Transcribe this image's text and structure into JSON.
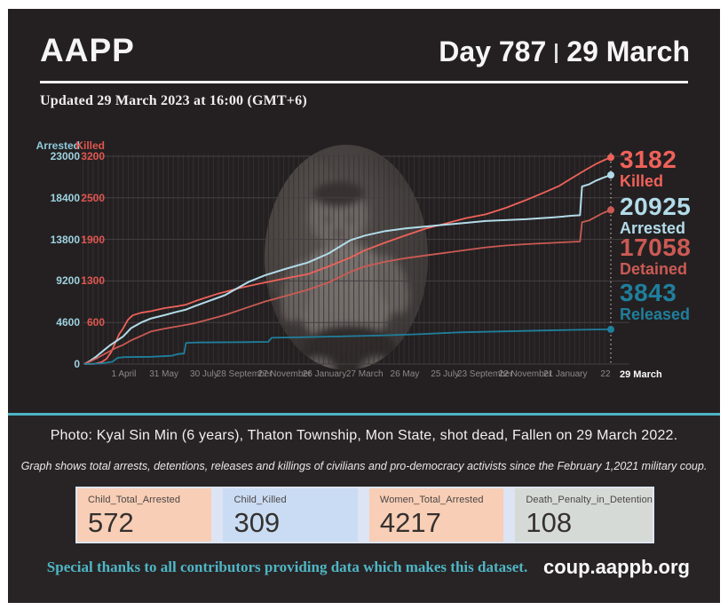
{
  "header": {
    "brand": "AAPP",
    "day_label": "Day 787",
    "date_label": "29 March",
    "updated": "Updated 29 March 2023 at 16:00 (GMT+6)"
  },
  "chart_data": {
    "type": "line",
    "x_domain": [
      0,
      787
    ],
    "x_domain_note": "days since 1 February 2021 coup; last day = 29 March 2023",
    "grid": true,
    "left_axis": {
      "title": "Arrested",
      "max": 23000,
      "ticks": [
        0,
        4600,
        9200,
        13800,
        18400,
        23000
      ],
      "color": "#9ed2e0"
    },
    "right_axis": {
      "title": "Killed",
      "max": 3200,
      "ticks": [
        600,
        1300,
        1900,
        2500,
        3200
      ],
      "color": "#e0564f"
    },
    "x_ticks": [
      {
        "label": "1 April",
        "day": 59
      },
      {
        "label": "31 May",
        "day": 119
      },
      {
        "label": "30 July",
        "day": 179
      },
      {
        "label": "28 September",
        "day": 239
      },
      {
        "label": "27 November",
        "day": 299
      },
      {
        "label": "26 January",
        "day": 359
      },
      {
        "label": "27 March",
        "day": 419
      },
      {
        "label": "26 May",
        "day": 479
      },
      {
        "label": "25 July",
        "day": 539
      },
      {
        "label": "23 September",
        "day": 599
      },
      {
        "label": "22 November",
        "day": 659
      },
      {
        "label": "21 January",
        "day": 719
      },
      {
        "label": "22",
        "day": 779
      },
      {
        "label": "29 March",
        "day": 787,
        "bold": true
      }
    ],
    "series": [
      {
        "name": "Killed",
        "axis": "right",
        "color": "#ef625a",
        "end_label": "3182",
        "end_value": 3182,
        "points": [
          [
            0,
            0
          ],
          [
            15,
            3
          ],
          [
            26,
            30
          ],
          [
            33,
            80
          ],
          [
            40,
            180
          ],
          [
            46,
            320
          ],
          [
            52,
            460
          ],
          [
            58,
            550
          ],
          [
            65,
            680
          ],
          [
            72,
            750
          ],
          [
            85,
            790
          ],
          [
            100,
            815
          ],
          [
            120,
            862
          ],
          [
            140,
            892
          ],
          [
            151,
            912
          ],
          [
            170,
            985
          ],
          [
            200,
            1085
          ],
          [
            230,
            1165
          ],
          [
            260,
            1235
          ],
          [
            300,
            1318
          ],
          [
            334,
            1384
          ],
          [
            365,
            1503
          ],
          [
            398,
            1642
          ],
          [
            420,
            1755
          ],
          [
            450,
            1872
          ],
          [
            480,
            1982
          ],
          [
            510,
            2085
          ],
          [
            540,
            2165
          ],
          [
            570,
            2245
          ],
          [
            600,
            2305
          ],
          [
            630,
            2406
          ],
          [
            660,
            2524
          ],
          [
            690,
            2655
          ],
          [
            710,
            2745
          ],
          [
            730,
            2872
          ],
          [
            750,
            2995
          ],
          [
            765,
            3082
          ],
          [
            778,
            3145
          ],
          [
            787,
            3182
          ]
        ]
      },
      {
        "name": "Arrested",
        "axis": "left",
        "color": "#b2dbe9",
        "end_label": "20925",
        "end_value": 20925,
        "points": [
          [
            0,
            0
          ],
          [
            8,
            320
          ],
          [
            18,
            850
          ],
          [
            28,
            1450
          ],
          [
            38,
            2050
          ],
          [
            48,
            2560
          ],
          [
            58,
            3060
          ],
          [
            70,
            3980
          ],
          [
            85,
            4600
          ],
          [
            100,
            5050
          ],
          [
            120,
            5420
          ],
          [
            135,
            5720
          ],
          [
            151,
            6010
          ],
          [
            165,
            6410
          ],
          [
            180,
            6810
          ],
          [
            210,
            7620
          ],
          [
            246,
            9110
          ],
          [
            270,
            9820
          ],
          [
            300,
            10520
          ],
          [
            334,
            11230
          ],
          [
            365,
            12240
          ],
          [
            398,
            13720
          ],
          [
            420,
            14230
          ],
          [
            450,
            14720
          ],
          [
            480,
            15020
          ],
          [
            510,
            15230
          ],
          [
            540,
            15430
          ],
          [
            570,
            15630
          ],
          [
            600,
            15830
          ],
          [
            630,
            15930
          ],
          [
            660,
            16030
          ],
          [
            700,
            16230
          ],
          [
            730,
            16420
          ],
          [
            741,
            16470
          ],
          [
            744,
            19660
          ],
          [
            755,
            19910
          ],
          [
            765,
            20310
          ],
          [
            775,
            20610
          ],
          [
            787,
            20925
          ]
        ]
      },
      {
        "name": "Detained",
        "axis": "left",
        "color": "#cb5a54",
        "end_label": "17058",
        "end_value": 17058,
        "points": [
          [
            0,
            0
          ],
          [
            8,
            260
          ],
          [
            18,
            620
          ],
          [
            28,
            1020
          ],
          [
            38,
            1420
          ],
          [
            48,
            1820
          ],
          [
            58,
            2120
          ],
          [
            70,
            2620
          ],
          [
            85,
            3120
          ],
          [
            100,
            3620
          ],
          [
            120,
            3920
          ],
          [
            135,
            4120
          ],
          [
            151,
            4320
          ],
          [
            165,
            4520
          ],
          [
            180,
            4820
          ],
          [
            210,
            5420
          ],
          [
            246,
            6320
          ],
          [
            270,
            6920
          ],
          [
            300,
            7520
          ],
          [
            334,
            8220
          ],
          [
            365,
            9020
          ],
          [
            398,
            10220
          ],
          [
            420,
            10820
          ],
          [
            450,
            11320
          ],
          [
            480,
            11720
          ],
          [
            510,
            12020
          ],
          [
            540,
            12320
          ],
          [
            570,
            12620
          ],
          [
            600,
            12920
          ],
          [
            630,
            13120
          ],
          [
            660,
            13270
          ],
          [
            700,
            13420
          ],
          [
            730,
            13520
          ],
          [
            741,
            13560
          ],
          [
            744,
            15710
          ],
          [
            755,
            15910
          ],
          [
            765,
            16310
          ],
          [
            775,
            16710
          ],
          [
            787,
            17058
          ]
        ]
      },
      {
        "name": "Released",
        "axis": "left",
        "color": "#1f7f9d",
        "end_label": "3843",
        "end_value": 3843,
        "points": [
          [
            0,
            0
          ],
          [
            25,
            60
          ],
          [
            42,
            260
          ],
          [
            50,
            700
          ],
          [
            60,
            770
          ],
          [
            100,
            810
          ],
          [
            130,
            910
          ],
          [
            140,
            1110
          ],
          [
            149,
            1160
          ],
          [
            152,
            2350
          ],
          [
            170,
            2385
          ],
          [
            240,
            2425
          ],
          [
            275,
            2455
          ],
          [
            280,
            2905
          ],
          [
            320,
            2955
          ],
          [
            380,
            3055
          ],
          [
            440,
            3155
          ],
          [
            500,
            3305
          ],
          [
            560,
            3505
          ],
          [
            620,
            3605
          ],
          [
            680,
            3705
          ],
          [
            730,
            3785
          ],
          [
            787,
            3843
          ]
        ]
      }
    ],
    "annotation_line": {
      "x_day": 787,
      "style": "dotted-white"
    },
    "title": "",
    "legend_position": "right"
  },
  "photo": {
    "caption": "Photo: Kyal Sin Min (6 years), Thaton Township, Mon State,  shot dead, Fallen on 29 March 2022."
  },
  "graph_note": "Graph shows total arrests, detentions, releases and killings of civilians and pro-democracy activists since the February 1,2021 military coup.",
  "stats": [
    {
      "label": "Child_Total_Arrested",
      "value": "572",
      "bg": "#f8ceb6"
    },
    {
      "label": "Child_Killed",
      "value": "309",
      "bg": "#cadcf3"
    },
    {
      "label": "Women_Total_Arrested",
      "value": "4217",
      "bg": "#f8ceb6"
    },
    {
      "label": "Death_Penalty_in_Detention",
      "value": "108",
      "bg": "#d6dad6"
    }
  ],
  "footer": {
    "thanks": "Special thanks to all contributors providing data which makes this dataset.",
    "site": "coup.aappb.org"
  },
  "colors": {
    "panel_bg": "#242021",
    "lower_bg": "#282425",
    "accent_teal": "#4db3c4",
    "grid_v": "#373133",
    "grid_h": "#453f41",
    "stats_strip_bg": "#dde4f4"
  }
}
